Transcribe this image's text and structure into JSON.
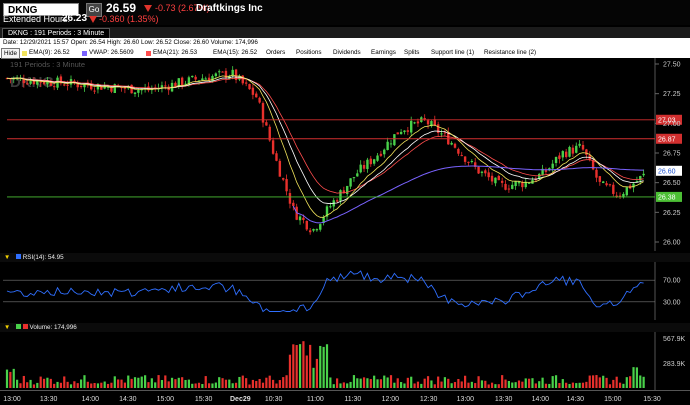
{
  "quote": {
    "symbol": "DKNG",
    "go_label": "Go",
    "last": "26.59",
    "change": "-0.73 (2.67%)",
    "company": "Draftkings Inc",
    "ext_label": "Extended Hours:",
    "ext_price": "26.23",
    "ext_change": "-0.360 (1.35%)"
  },
  "window": {
    "tab_label": "DKNG : 191  Periods : 3 Minute"
  },
  "ohlc_line": "Date: 12/29/2021 15:57   Open: 26.54   High: 26.60   Low: 26.52   Close: 26.60   Volume: 174,996",
  "toolbar": {
    "hide_label": "Hide",
    "studies": [
      {
        "label": "EMA(9): 26.52",
        "color": "#f1e35b"
      },
      {
        "label": "VWAP: 26.5609",
        "color": "#7a63ff"
      },
      {
        "label": "EMA(21): 26.53",
        "color": "#ff4d4d"
      },
      {
        "label": "EMA(15): 26.52",
        "color": "#ffffff"
      }
    ],
    "menus": [
      "Orders",
      "Positions",
      "Dividends",
      "Earnings",
      "Splits",
      "Support line (1)",
      "Resistance line (2)"
    ]
  },
  "price_pane": {
    "watermark_symbol": "DKNG",
    "watermark_text": "191  Periods : 3 Minute",
    "y_ticks": [
      "27.50",
      "27.25",
      "27.00",
      "26.75",
      "26.50",
      "26.25",
      "26.00"
    ],
    "resistance_labels": [
      "27.03",
      "26.87"
    ],
    "support_label": "26.38",
    "last_label": "26.60",
    "colors": {
      "up": "#49d24a",
      "down": "#e8302c",
      "resistance": "#d22f2f",
      "support": "#4cbf35",
      "vwap": "#7a63ff"
    }
  },
  "rsi_pane": {
    "label": "RSI(14): 54.95",
    "y_ticks": [
      "70.00",
      "30.00"
    ],
    "line_color": "#2f6fff"
  },
  "volume_pane": {
    "label": "Volume: 174,996",
    "y_ticks": [
      "567.9K",
      "283.9K"
    ]
  },
  "x_axis": [
    "13:00",
    "13:30",
    "14:00",
    "14:30",
    "15:00",
    "15:30",
    "Dec29",
    "10:30",
    "11:00",
    "11:30",
    "12:00",
    "12:30",
    "13:00",
    "13:30",
    "14:00",
    "14:30",
    "15:00",
    "15:30"
  ]
}
